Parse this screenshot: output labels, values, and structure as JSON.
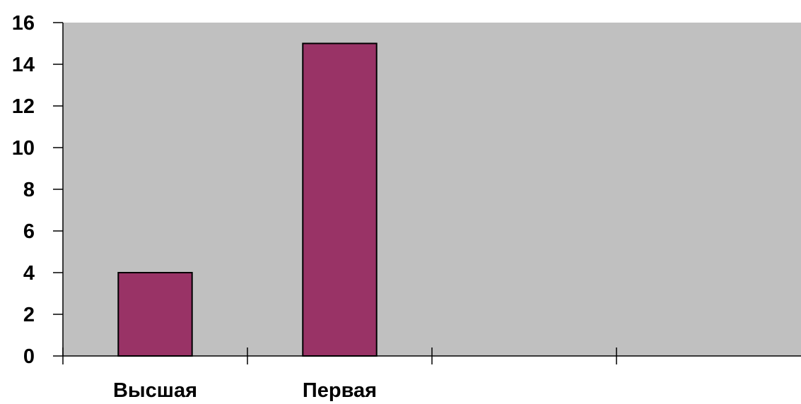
{
  "chart_data": {
    "type": "bar",
    "title": "",
    "xlabel": "",
    "ylabel": "",
    "categories": [
      "Высшая",
      "Первая",
      "",
      ""
    ],
    "values": [
      4,
      15,
      null,
      null
    ],
    "ylim": [
      0,
      16
    ],
    "yticks": [
      0,
      2,
      4,
      6,
      8,
      10,
      12,
      14,
      16
    ],
    "ytick_labels": [
      "0",
      "2",
      "4",
      "6",
      "8",
      "10",
      "12",
      "14",
      "16"
    ],
    "grid": false,
    "legend": "none",
    "colors": {
      "bar": "#993366",
      "plot_background": "#c0c0c0",
      "axis": "#000000"
    }
  }
}
